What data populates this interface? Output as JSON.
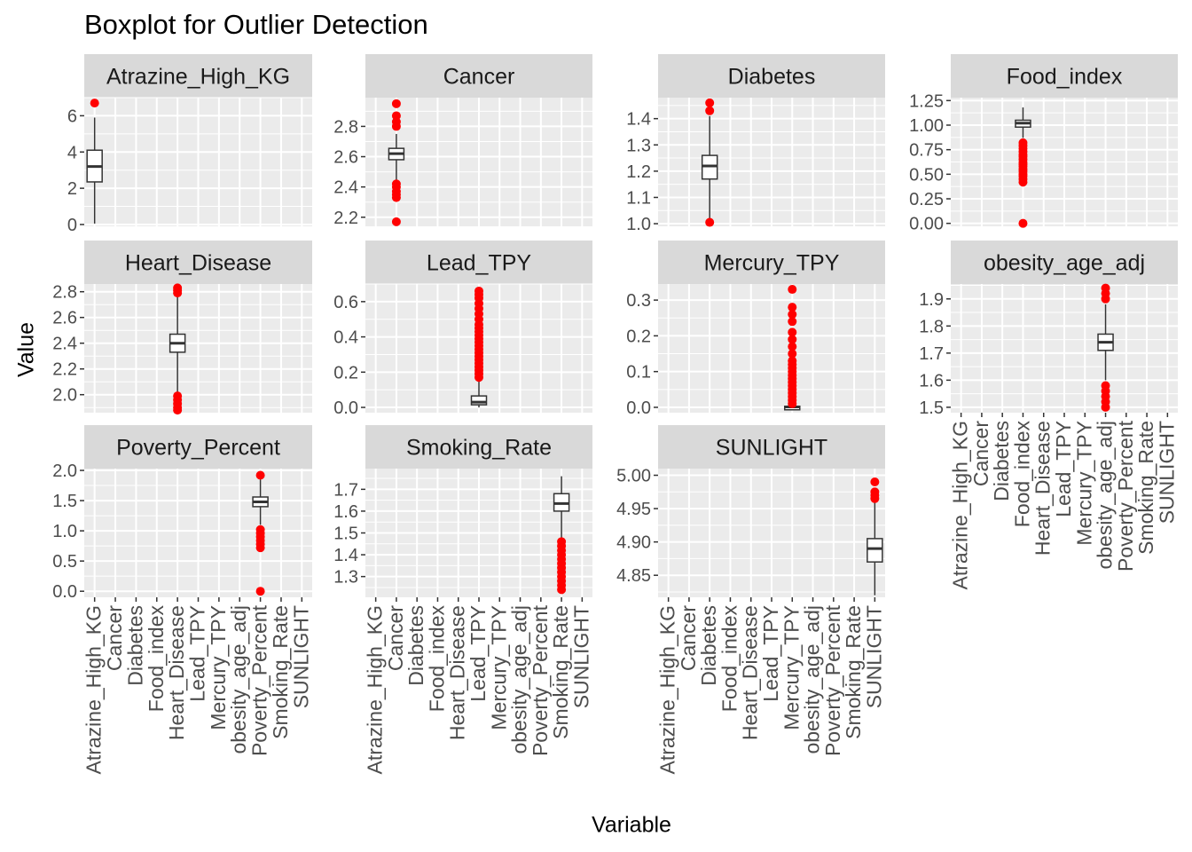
{
  "chart_data": {
    "type": "boxplot",
    "title": "Boxplot for Outlier Detection",
    "xlabel": "Variable",
    "ylabel": "Value",
    "layout": "facet_wrap, 4 columns, free scales",
    "box_fill": "#ffffff",
    "outlier_color": "#ff0000",
    "panel_background": "#ebebeb",
    "strip_background": "#d9d9d9",
    "categories": [
      "Atrazine_High_KG",
      "Cancer",
      "Diabetes",
      "Food_index",
      "Heart_Disease",
      "Lead_TPY",
      "Mercury_TPY",
      "obesity_age_adj",
      "Poverty_Percent",
      "Smoking_Rate",
      "SUNLIGHT"
    ],
    "panels": [
      {
        "name": "Atrazine_High_KG",
        "cat_index": 0,
        "ylim": [
          -0.1,
          7.0
        ],
        "yticks": [
          0,
          2,
          4,
          6
        ],
        "ticklabels": [
          "0",
          "2",
          "4",
          "6"
        ],
        "box": {
          "wlo": 0.05,
          "q1": 2.35,
          "med": 3.2,
          "q3": 4.1,
          "whi": 5.9
        },
        "outliers": [
          6.7
        ]
      },
      {
        "name": "Cancer",
        "cat_index": 1,
        "ylim": [
          2.14,
          2.99
        ],
        "yticks": [
          2.2,
          2.4,
          2.6,
          2.8
        ],
        "ticklabels": [
          "2.2",
          "2.4",
          "2.6",
          "2.8"
        ],
        "box": {
          "wlo": 2.44,
          "q1": 2.58,
          "med": 2.62,
          "q3": 2.655,
          "whi": 2.75
        },
        "outliers": [
          2.17,
          2.33,
          2.35,
          2.37,
          2.4,
          2.42,
          2.8,
          2.83,
          2.87,
          2.95
        ]
      },
      {
        "name": "Diabetes",
        "cat_index": 2,
        "ylim": [
          0.99,
          1.48
        ],
        "yticks": [
          1.0,
          1.1,
          1.2,
          1.3,
          1.4
        ],
        "ticklabels": [
          "1.0",
          "1.1",
          "1.2",
          "1.3",
          "1.4"
        ],
        "box": {
          "wlo": 1.01,
          "q1": 1.17,
          "med": 1.22,
          "q3": 1.26,
          "whi": 1.41
        },
        "outliers": [
          1.005,
          1.43,
          1.46
        ]
      },
      {
        "name": "Food_index",
        "cat_index": 3,
        "ylim": [
          -0.03,
          1.28
        ],
        "yticks": [
          0.0,
          0.25,
          0.5,
          0.75,
          1.0,
          1.25
        ],
        "ticklabels": [
          "0.00",
          "0.25",
          "0.50",
          "0.75",
          "1.00",
          "1.25"
        ],
        "box": {
          "wlo": 0.87,
          "q1": 0.98,
          "med": 1.02,
          "q3": 1.05,
          "whi": 1.18
        },
        "outliers": [
          0.0,
          0.42,
          0.45,
          0.48,
          0.5,
          0.53,
          0.55,
          0.58,
          0.6,
          0.62,
          0.65,
          0.68,
          0.7,
          0.73,
          0.76,
          0.79,
          0.82
        ]
      },
      {
        "name": "Heart_Disease",
        "cat_index": 4,
        "ylim": [
          1.86,
          2.86
        ],
        "yticks": [
          2.0,
          2.2,
          2.4,
          2.6,
          2.8
        ],
        "ticklabels": [
          "2.0",
          "2.2",
          "2.4",
          "2.6",
          "2.8"
        ],
        "box": {
          "wlo": 2.01,
          "q1": 2.33,
          "med": 2.4,
          "q3": 2.47,
          "whi": 2.77
        },
        "outliers": [
          1.88,
          1.9,
          1.93,
          1.96,
          1.99,
          2.79,
          2.81,
          2.83
        ]
      },
      {
        "name": "Lead_TPY",
        "cat_index": 5,
        "ylim": [
          -0.03,
          0.7
        ],
        "yticks": [
          0.0,
          0.2,
          0.4,
          0.6
        ],
        "ticklabels": [
          "0.0",
          "0.2",
          "0.4",
          "0.6"
        ],
        "box": {
          "wlo": 0.0,
          "q1": 0.015,
          "med": 0.03,
          "q3": 0.065,
          "whi": 0.15
        },
        "outliers": [
          0.17,
          0.19,
          0.21,
          0.23,
          0.25,
          0.27,
          0.29,
          0.31,
          0.33,
          0.35,
          0.37,
          0.39,
          0.41,
          0.43,
          0.45,
          0.47,
          0.5,
          0.53,
          0.56,
          0.59,
          0.62,
          0.64,
          0.66
        ]
      },
      {
        "name": "Mercury_TPY",
        "cat_index": 6,
        "ylim": [
          -0.015,
          0.345
        ],
        "yticks": [
          0.0,
          0.1,
          0.2,
          0.3
        ],
        "ticklabels": [
          "0.0",
          "0.1",
          "0.2",
          "0.3"
        ],
        "box": {
          "wlo": 0.0,
          "q1": 0.0,
          "med": 0.001,
          "q3": 0.003,
          "whi": 0.008
        },
        "outliers": [
          0.01,
          0.02,
          0.03,
          0.04,
          0.05,
          0.06,
          0.07,
          0.08,
          0.09,
          0.1,
          0.11,
          0.12,
          0.13,
          0.15,
          0.17,
          0.19,
          0.21,
          0.24,
          0.26,
          0.28,
          0.33
        ]
      },
      {
        "name": "obesity_age_adj",
        "cat_index": 7,
        "ylim": [
          1.48,
          1.955
        ],
        "yticks": [
          1.5,
          1.6,
          1.7,
          1.8,
          1.9
        ],
        "ticklabels": [
          "1.5",
          "1.6",
          "1.7",
          "1.8",
          "1.9"
        ],
        "box": {
          "wlo": 1.6,
          "q1": 1.71,
          "med": 1.74,
          "q3": 1.77,
          "whi": 1.88
        },
        "outliers": [
          1.5,
          1.52,
          1.54,
          1.56,
          1.58,
          1.9,
          1.92,
          1.94
        ]
      },
      {
        "name": "Poverty_Percent",
        "cat_index": 8,
        "ylim": [
          -0.1,
          2.03
        ],
        "yticks": [
          0.0,
          0.5,
          1.0,
          1.5,
          2.0
        ],
        "ticklabels": [
          "0.0",
          "0.5",
          "1.0",
          "1.5",
          "2.0"
        ],
        "box": {
          "wlo": 1.1,
          "q1": 1.4,
          "med": 1.48,
          "q3": 1.56,
          "whi": 1.85
        },
        "outliers": [
          0.0,
          0.72,
          0.78,
          0.84,
          0.9,
          0.96,
          1.02,
          1.92
        ]
      },
      {
        "name": "Smoking_Rate",
        "cat_index": 9,
        "ylim": [
          1.205,
          1.795
        ],
        "yticks": [
          1.3,
          1.4,
          1.5,
          1.6,
          1.7
        ],
        "ticklabels": [
          "1.3",
          "1.4",
          "1.5",
          "1.6",
          "1.7"
        ],
        "box": {
          "wlo": 1.47,
          "q1": 1.6,
          "med": 1.635,
          "q3": 1.68,
          "whi": 1.76
        },
        "outliers": [
          1.24,
          1.26,
          1.28,
          1.3,
          1.32,
          1.34,
          1.36,
          1.38,
          1.4,
          1.42,
          1.44,
          1.46
        ]
      },
      {
        "name": "SUNLIGHT",
        "cat_index": 10,
        "ylim": [
          4.817,
          5.01
        ],
        "yticks": [
          4.85,
          4.9,
          4.95,
          5.0
        ],
        "ticklabels": [
          "4.85",
          "4.90",
          "4.95",
          "5.00"
        ],
        "box": {
          "wlo": 4.82,
          "q1": 4.87,
          "med": 4.89,
          "q3": 4.905,
          "whi": 4.96
        },
        "outliers": [
          4.965,
          4.97,
          4.975,
          4.99
        ]
      }
    ]
  }
}
